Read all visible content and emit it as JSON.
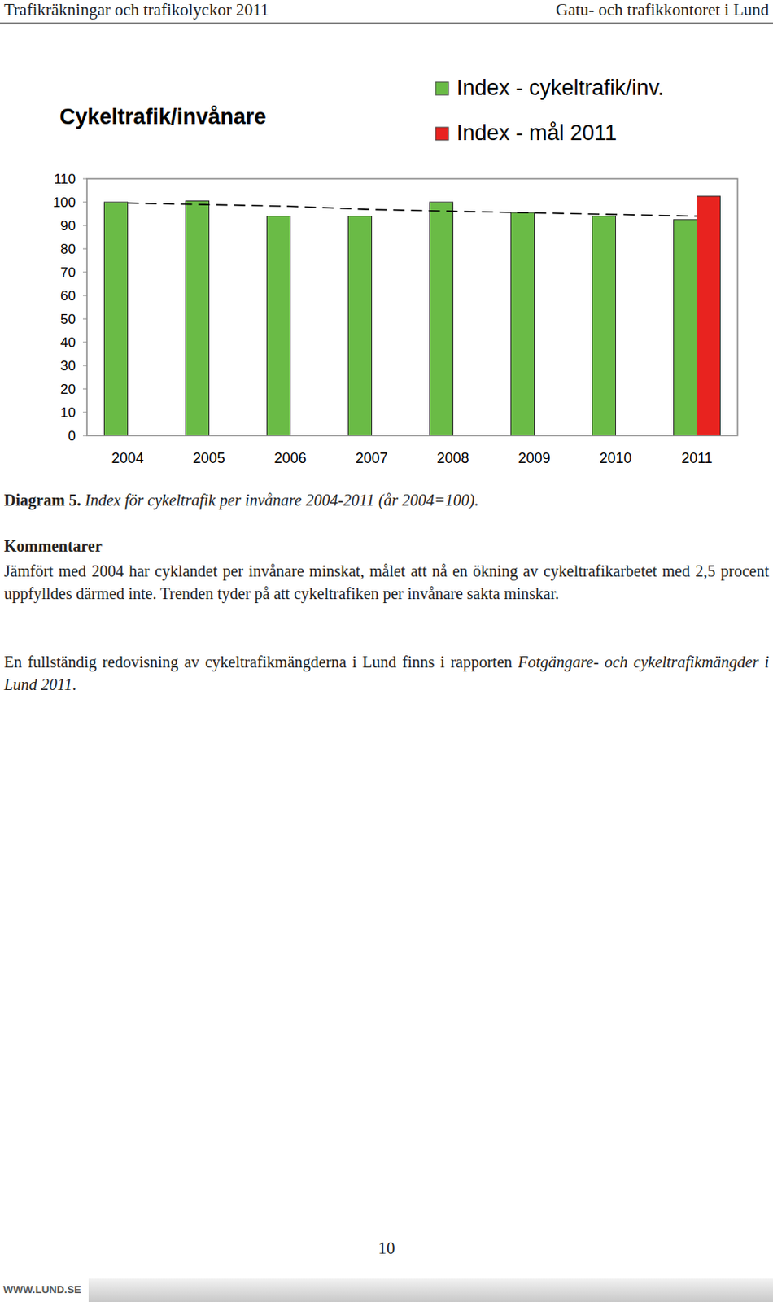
{
  "header": {
    "left": "Trafikräkningar och trafikolyckor 2011",
    "right": "Gatu- och trafikkontoret i Lund"
  },
  "chart_data": {
    "type": "bar",
    "title": "Cykeltrafik/invånare",
    "categories": [
      "2004",
      "2005",
      "2006",
      "2007",
      "2008",
      "2009",
      "2010",
      "2011"
    ],
    "series": [
      {
        "name": "Index - cykeltrafik/inv.",
        "color": "#6abb46",
        "values": [
          100,
          100.5,
          94,
          94,
          100,
          95.5,
          94,
          92.5
        ]
      },
      {
        "name": "Index - mål 2011",
        "color": "#e8231f",
        "values": [
          null,
          null,
          null,
          null,
          null,
          null,
          null,
          102.5
        ]
      },
      {
        "type": "line",
        "line_style": "dashed",
        "color": "#000000",
        "values": [
          99.6,
          98.9,
          98.2,
          96.8,
          96.1,
          95.4,
          94.7,
          94
        ]
      }
    ],
    "ylim": [
      0,
      110
    ],
    "yticks": [
      0,
      10,
      20,
      30,
      40,
      50,
      60,
      70,
      80,
      90,
      100,
      110
    ],
    "grid": false,
    "legend": "top-right"
  },
  "caption": {
    "label": "Diagram 5.",
    "text": "Index för cykeltrafik per invånare 2004-2011 (år 2004=100)."
  },
  "comments": {
    "heading": "Kommentarer",
    "paragraph1": "Jämfört med 2004 har cyklandet per invånare minskat, målet att nå en ökning av cykeltrafikarbetet med 2,5 procent uppfylldes därmed inte. Trenden tyder på att cykeltrafiken per invånare sakta minskar.",
    "paragraph2": {
      "text": "En fullständig redovisning av cykeltrafikmängderna i Lund finns i rapporten ",
      "report_title": "Fotgängare- och cykeltrafikmängder i Lund 2011",
      "end": "."
    }
  },
  "page_number": "10",
  "footer": "WWW.LUND.SE"
}
